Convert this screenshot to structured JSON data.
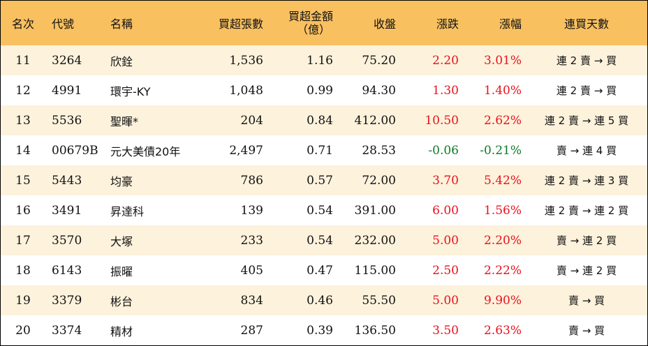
{
  "colors": {
    "header_bg": "#f9c060",
    "stripe_bg": "#fdf2dc",
    "plain_bg": "#ffffff",
    "up": "#e8121e",
    "down": "#0a7a26"
  },
  "header": {
    "rank": "名次",
    "code": "代號",
    "name": "名稱",
    "volume": "買超張數",
    "amount_line1": "買超金額",
    "amount_line2": "（億）",
    "close": "收盤",
    "change": "漲跌",
    "change_pct": "漲幅",
    "streak": "連買天數"
  },
  "rows": [
    {
      "rank": "11",
      "code": "3264",
      "name": "欣銓",
      "volume": "1,536",
      "amount": "1.16",
      "close": "75.20",
      "change": "2.20",
      "change_pct": "3.01%",
      "streak": "連 2 賣 → 買",
      "dir": "up"
    },
    {
      "rank": "12",
      "code": "4991",
      "name": "環宇-KY",
      "volume": "1,048",
      "amount": "0.99",
      "close": "94.30",
      "change": "1.30",
      "change_pct": "1.40%",
      "streak": "連 2 賣 → 買",
      "dir": "up"
    },
    {
      "rank": "13",
      "code": "5536",
      "name": "聖暉*",
      "volume": "204",
      "amount": "0.84",
      "close": "412.00",
      "change": "10.50",
      "change_pct": "2.62%",
      "streak": "連 2 賣 → 連 5 買",
      "dir": "up"
    },
    {
      "rank": "14",
      "code": "00679B",
      "name": "元大美債20年",
      "volume": "2,497",
      "amount": "0.71",
      "close": "28.53",
      "change": "-0.06",
      "change_pct": "-0.21%",
      "streak": "賣 → 連 4 買",
      "dir": "down"
    },
    {
      "rank": "15",
      "code": "5443",
      "name": "均豪",
      "volume": "786",
      "amount": "0.57",
      "close": "72.00",
      "change": "3.70",
      "change_pct": "5.42%",
      "streak": "連 2 賣 → 連 3 買",
      "dir": "up"
    },
    {
      "rank": "16",
      "code": "3491",
      "name": "昇達科",
      "volume": "139",
      "amount": "0.54",
      "close": "391.00",
      "change": "6.00",
      "change_pct": "1.56%",
      "streak": "連 2 賣 → 連 2 買",
      "dir": "up"
    },
    {
      "rank": "17",
      "code": "3570",
      "name": "大塚",
      "volume": "233",
      "amount": "0.54",
      "close": "232.00",
      "change": "5.00",
      "change_pct": "2.20%",
      "streak": "賣 → 連 2 買",
      "dir": "up"
    },
    {
      "rank": "18",
      "code": "6143",
      "name": "振曜",
      "volume": "405",
      "amount": "0.47",
      "close": "115.00",
      "change": "2.50",
      "change_pct": "2.22%",
      "streak": "賣 → 連 2 買",
      "dir": "up"
    },
    {
      "rank": "19",
      "code": "3379",
      "name": "彬台",
      "volume": "834",
      "amount": "0.46",
      "close": "55.50",
      "change": "5.00",
      "change_pct": "9.90%",
      "streak": "賣 → 買",
      "dir": "up"
    },
    {
      "rank": "20",
      "code": "3374",
      "name": "精材",
      "volume": "287",
      "amount": "0.39",
      "close": "136.50",
      "change": "3.50",
      "change_pct": "2.63%",
      "streak": "賣 → 買",
      "dir": "up"
    }
  ]
}
